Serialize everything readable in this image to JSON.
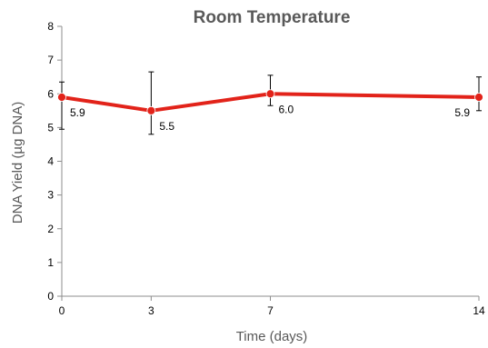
{
  "chart_data": {
    "type": "line",
    "title": "Room Temperature",
    "xlabel": "Time (days)",
    "ylabel": "DNA Yield (µg DNA)",
    "x": [
      0,
      3,
      7,
      14
    ],
    "x_tick_labels": [
      "0",
      "3",
      "7",
      "14"
    ],
    "ylim": [
      0,
      8
    ],
    "y_ticks": [
      0,
      1,
      2,
      3,
      4,
      5,
      6,
      7,
      8
    ],
    "grid": false,
    "legend": "none",
    "series": [
      {
        "values": [
          5.9,
          5.5,
          6.0,
          5.9
        ],
        "error_low": [
          4.95,
          4.8,
          5.65,
          5.5
        ],
        "error_high": [
          6.35,
          6.65,
          6.55,
          6.5
        ],
        "data_labels": [
          "5.9",
          "5.5",
          "6.0",
          "5.9"
        ],
        "color": "#e2231a"
      }
    ]
  }
}
